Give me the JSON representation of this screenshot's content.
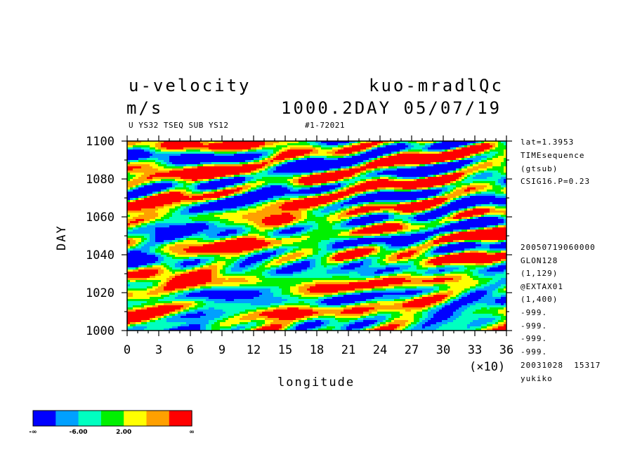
{
  "header": {
    "title_left": "u-velocity",
    "title_right": "kuo-mradlQc",
    "units": "m/s",
    "time_label": "1000.2DAY 05/07/19",
    "sub_left": "U YS32 TSEQ SUB YS12",
    "sub_right": "#1-72021"
  },
  "side_info": {
    "top": [
      "lat=1.3953",
      "TIMEsequence",
      "(gtsub)",
      "CSIG16.P=0.23"
    ],
    "bottom": [
      "20050719060000",
      "GLON128",
      "(1,129)",
      "@EXTAX01",
      "(1,400)",
      "-999.",
      "-999.",
      "-999.",
      "-999.",
      "20031028  15317",
      "yukiko"
    ]
  },
  "colorbar": {
    "labels": [
      "-∞",
      "-6.00",
      "2.00",
      "∞"
    ],
    "colors": [
      "#0000ff",
      "#00a0ff",
      "#00ffc0",
      "#00f000",
      "#ffff00",
      "#ffa000",
      "#ff0000"
    ]
  },
  "chart_data": {
    "type": "heatmap",
    "title": "u-velocity",
    "subtitle": "kuo-mradlQc",
    "xlabel": "longitude",
    "ylabel": "DAY",
    "x_scale_note": "(×10)",
    "xlim": [
      0,
      36
    ],
    "ylim": [
      1000,
      1100
    ],
    "x_ticks": [
      "0",
      "3",
      "6",
      "9",
      "12",
      "15",
      "18",
      "21",
      "24",
      "27",
      "30",
      "33",
      "36"
    ],
    "y_ticks": [
      "1000",
      "1020",
      "1040",
      "1060",
      "1080",
      "1100"
    ],
    "value_units": "m/s",
    "contour_levels": [
      -6.0,
      2.0
    ],
    "grid": false
  }
}
